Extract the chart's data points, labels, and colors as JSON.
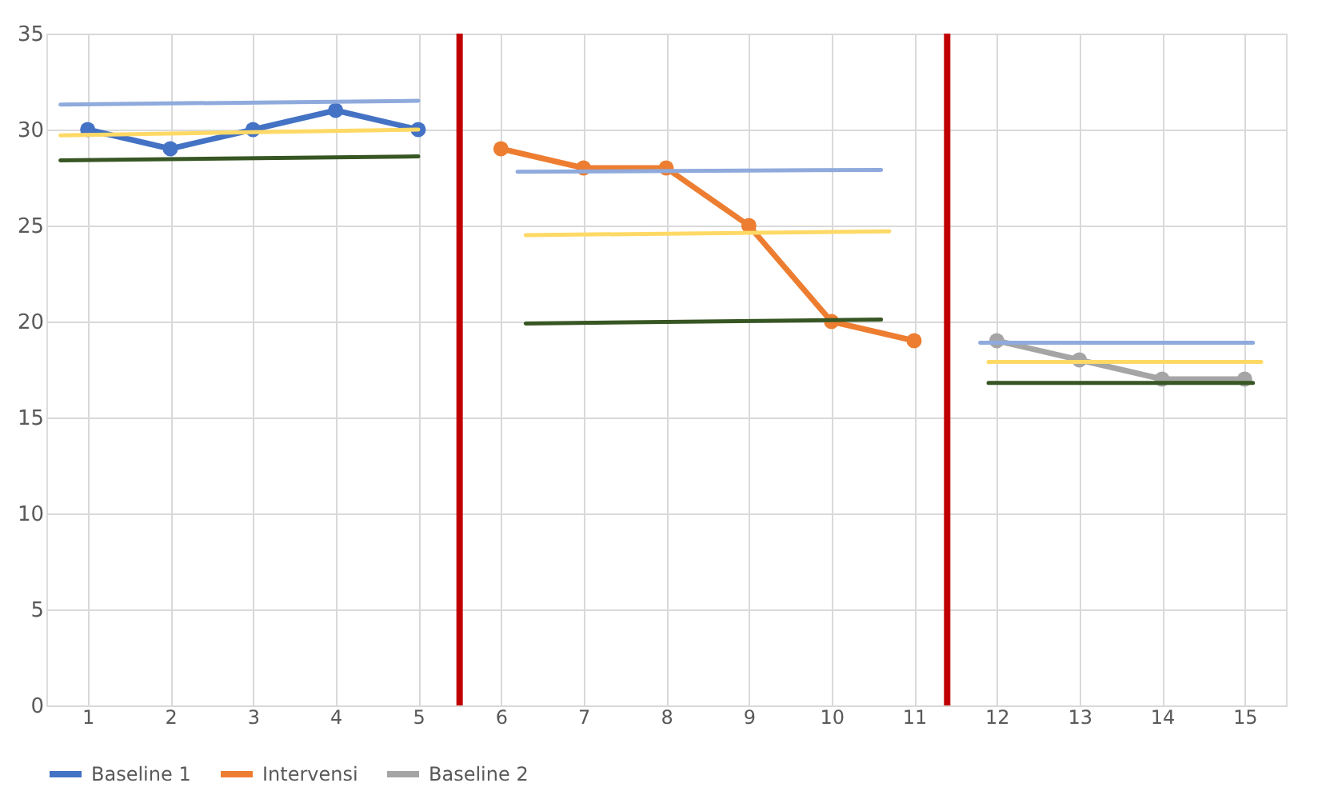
{
  "chart_data": {
    "type": "line",
    "xlim": [
      0.5,
      15.5
    ],
    "xticks": [
      1,
      2,
      3,
      4,
      5,
      6,
      7,
      8,
      9,
      10,
      11,
      12,
      13,
      14,
      15
    ],
    "ylim": [
      0,
      35
    ],
    "yticks": [
      0,
      5,
      10,
      15,
      20,
      25,
      30,
      35
    ],
    "grid": true,
    "legend": "bottom",
    "marker": "circle",
    "line_style": "solid",
    "series": [
      {
        "name": "Baseline 1",
        "color": "#4472c4",
        "x": [
          1,
          2,
          3,
          4,
          5
        ],
        "values": [
          30,
          29,
          30,
          31,
          30
        ]
      },
      {
        "name": "Intervensi",
        "color": "#ed7d31",
        "x": [
          6,
          7,
          8,
          9,
          10,
          11
        ],
        "values": [
          29,
          28,
          28,
          25,
          20,
          19
        ]
      },
      {
        "name": "Baseline 2",
        "color": "#a5a5a5",
        "x": [
          12,
          13,
          14,
          15
        ],
        "values": [
          19,
          18,
          17,
          17
        ]
      },
      {
        "type": "line",
        "marker": "none",
        "color": "#8faadc",
        "x": [
          0.67,
          5.0
        ],
        "values": [
          31.3,
          31.5
        ]
      },
      {
        "type": "line",
        "marker": "none",
        "color": "#ffd966",
        "x": [
          0.67,
          5.0
        ],
        "values": [
          29.7,
          30.0
        ]
      },
      {
        "type": "line",
        "marker": "none",
        "color": "#375623",
        "x": [
          0.67,
          5.0
        ],
        "values": [
          28.4,
          28.6
        ]
      },
      {
        "type": "line",
        "marker": "none",
        "color": "#8faadc",
        "x": [
          6.2,
          10.6
        ],
        "values": [
          27.8,
          27.9
        ]
      },
      {
        "type": "line",
        "marker": "none",
        "color": "#ffd966",
        "x": [
          6.3,
          10.7
        ],
        "values": [
          24.5,
          24.7
        ]
      },
      {
        "type": "line",
        "marker": "none",
        "color": "#375623",
        "x": [
          6.3,
          10.6
        ],
        "values": [
          19.9,
          20.1
        ]
      },
      {
        "type": "line",
        "marker": "none",
        "color": "#8faadc",
        "x": [
          11.8,
          15.1
        ],
        "values": [
          18.9,
          18.9
        ]
      },
      {
        "type": "line",
        "marker": "none",
        "color": "#ffd966",
        "x": [
          11.9,
          15.2
        ],
        "values": [
          17.9,
          17.9
        ]
      },
      {
        "type": "line",
        "marker": "none",
        "color": "#375623",
        "x": [
          11.9,
          15.1
        ],
        "values": [
          16.8,
          16.8
        ]
      }
    ],
    "ref_lines": [
      {
        "axis": "x",
        "value": 5.5,
        "color": "#c00000"
      },
      {
        "axis": "x",
        "value": 11.4,
        "color": "#c00000"
      }
    ]
  }
}
